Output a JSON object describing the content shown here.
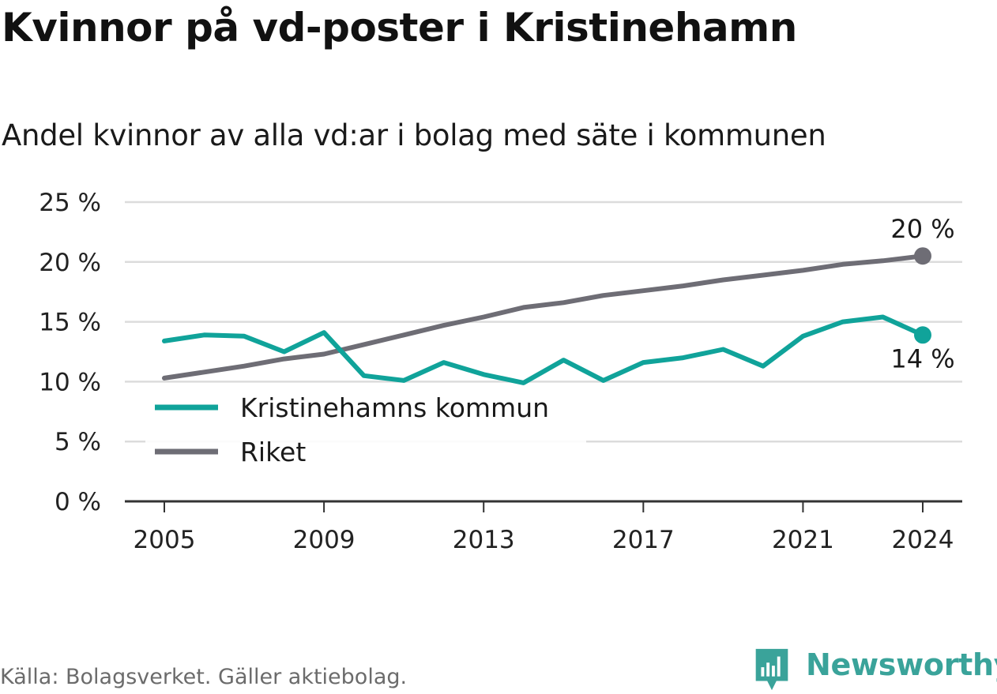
{
  "title": "Kvinnor på vd-poster i Kristinehamn",
  "subtitle": "Andel kvinnor av alla vd:ar i bolag med säte i kommunen",
  "source": "Källa: Bolagsverket. Gäller aktiebolag.",
  "brand": {
    "name": "Newsworthy",
    "icon": "bar-chart-logo-icon"
  },
  "colors": {
    "kristinehamn": "#10a39a",
    "riket": "#6e6d75",
    "grid": "#dcdcdc",
    "axis": "#333333"
  },
  "chart_data": {
    "type": "line",
    "x": [
      2005,
      2006,
      2007,
      2008,
      2009,
      2010,
      2011,
      2012,
      2013,
      2014,
      2015,
      2016,
      2017,
      2018,
      2019,
      2020,
      2021,
      2022,
      2023,
      2024
    ],
    "series": [
      {
        "name": "Kristinehamns kommun",
        "color": "#10a39a",
        "values": [
          13.4,
          13.9,
          13.8,
          12.5,
          14.1,
          10.5,
          10.1,
          11.6,
          10.6,
          9.9,
          11.8,
          10.1,
          11.6,
          12.0,
          12.7,
          11.3,
          13.8,
          15.0,
          15.4,
          13.9
        ]
      },
      {
        "name": "Riket",
        "color": "#6e6d75",
        "values": [
          10.3,
          10.8,
          11.3,
          11.9,
          12.3,
          13.1,
          13.9,
          14.7,
          15.4,
          16.2,
          16.6,
          17.2,
          17.6,
          18.0,
          18.5,
          18.9,
          19.3,
          19.8,
          20.1,
          20.5
        ]
      }
    ],
    "end_labels": [
      {
        "series": "Riket",
        "text": "20 %"
      },
      {
        "series": "Kristinehamns kommun",
        "text": "14 %"
      }
    ],
    "ylim": [
      0,
      25
    ],
    "yticks": [
      {
        "value": 25,
        "label": "25 %"
      },
      {
        "value": 20,
        "label": "20 %"
      },
      {
        "value": 15,
        "label": "15 %"
      },
      {
        "value": 10,
        "label": "10 %"
      },
      {
        "value": 5,
        "label": "5 %"
      },
      {
        "value": 0,
        "label": "0 %"
      }
    ],
    "xticks": [
      {
        "value": 2005,
        "label": "2005"
      },
      {
        "value": 2009,
        "label": "2009"
      },
      {
        "value": 2013,
        "label": "2013"
      },
      {
        "value": 2017,
        "label": "2017"
      },
      {
        "value": 2021,
        "label": "2021"
      },
      {
        "value": 2024,
        "label": "2024"
      }
    ],
    "legend": [
      {
        "label": "Kristinehamns kommun",
        "color": "#10a39a"
      },
      {
        "label": "Riket",
        "color": "#6e6d75"
      }
    ],
    "legend_position": "bottom-left",
    "grid": true,
    "xlabel": "",
    "ylabel": ""
  }
}
